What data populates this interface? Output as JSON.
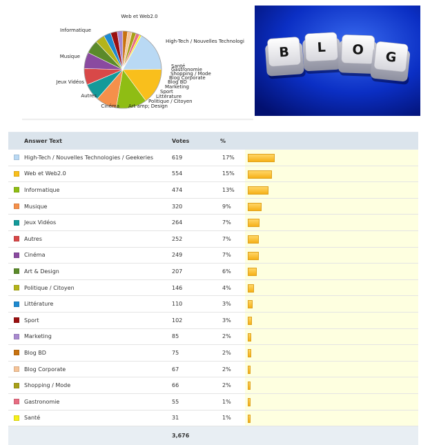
{
  "pie": {
    "labels": [
      "High-Tech / Nouvelles Technologi",
      "Web et Web2.0",
      "Informatique",
      "Musique",
      "Jeux Vidéos",
      "Autres",
      "Cinéma",
      "Art  amp; Design",
      "Politique / Citoyen",
      "Littérature",
      "Sport",
      "Marketing",
      "Blog BD",
      "Blog Corporate",
      "Shopping / Mode",
      "Gastronomie",
      "Santé"
    ]
  },
  "photo": {
    "keys": [
      "B",
      "L",
      "O",
      "G"
    ]
  },
  "table": {
    "headers": {
      "answer": "Answer Text",
      "votes": "Votes",
      "percent": "%"
    },
    "total": "3,676"
  },
  "chart_data": {
    "type": "pie",
    "categories": [
      "High-Tech / Nouvelles Technologies / Geekeries",
      "Web et Web2.0",
      "Informatique",
      "Musique",
      "Jeux Vidéos",
      "Autres",
      "Cinéma",
      "Art & Design",
      "Politique / Citoyen",
      "Littérature",
      "Sport",
      "Marketing",
      "Blog BD",
      "Blog Corporate",
      "Shopping / Mode",
      "Gastronomie",
      "Santé"
    ],
    "values": [
      619,
      554,
      474,
      320,
      264,
      252,
      249,
      207,
      146,
      110,
      102,
      85,
      75,
      67,
      66,
      55,
      31
    ],
    "percents": [
      "17%",
      "15%",
      "13%",
      "9%",
      "7%",
      "7%",
      "7%",
      "6%",
      "4%",
      "3%",
      "3%",
      "2%",
      "2%",
      "2%",
      "2%",
      "1%",
      "1%"
    ],
    "colors": [
      "#b9d9f4",
      "#f9bf1c",
      "#8fbd14",
      "#f5904a",
      "#139a9a",
      "#d84848",
      "#8a4aa0",
      "#5b8a2a",
      "#b4b41a",
      "#1e8ad0",
      "#9a1010",
      "#a98ad0",
      "#c8720f",
      "#f6c498",
      "#a8a018",
      "#e86d82",
      "#f6f01a"
    ],
    "total": 3676
  }
}
